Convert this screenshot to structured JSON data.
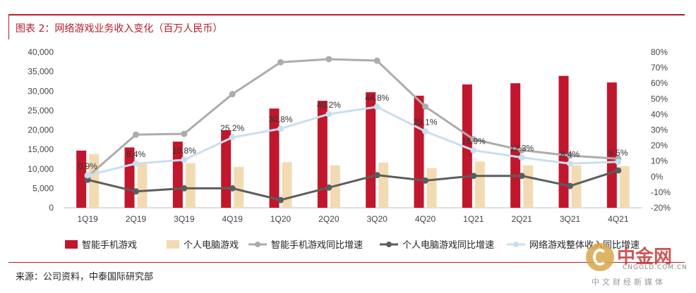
{
  "title": "图表 2：网络游戏业务收入变化（百万人民币）",
  "source": "来源：公司资料，中泰国际研究部",
  "watermark": {
    "main": "中金网",
    "url": "CNGOLD.COM.CN",
    "tagline": "中文财经新媒体"
  },
  "colors": {
    "mobile_bar": "#c0172d",
    "pc_bar": "#f2dbb3",
    "mobile_line": "#acacac",
    "pc_line": "#5d5d5d",
    "total_line": "#c9dff0"
  },
  "chart_data": {
    "type": "bar",
    "categories": [
      "1Q19",
      "2Q19",
      "3Q19",
      "4Q19",
      "1Q20",
      "2Q20",
      "3Q20",
      "4Q20",
      "1Q21",
      "2Q21",
      "3Q21",
      "4Q21"
    ],
    "left_axis": {
      "min": 0,
      "max": 40000,
      "ticks": [
        "0",
        "5,000",
        "10,000",
        "15,000",
        "20,000",
        "25,000",
        "30,000",
        "35,000",
        "40,000"
      ]
    },
    "right_axis": {
      "min": -20,
      "max": 80,
      "ticks": [
        "-20%",
        "-10%",
        "0%",
        "10%",
        "20%",
        "30%",
        "40%",
        "50%",
        "60%",
        "70%",
        "80%"
      ]
    },
    "series": [
      {
        "name": "智能手机游戏",
        "kind": "bar",
        "axis": "left",
        "values": [
          14700,
          15500,
          17000,
          19900,
          25500,
          27500,
          29700,
          28800,
          31700,
          32000,
          33900,
          32200
        ]
      },
      {
        "name": "个人电脑游戏",
        "kind": "bar",
        "axis": "left",
        "values": [
          13800,
          11600,
          11500,
          10500,
          11700,
          10900,
          11600,
          10200,
          11900,
          10900,
          10900,
          10700
        ]
      },
      {
        "name": "智能手机游戏同比增速",
        "kind": "line",
        "axis": "right",
        "values": [
          0,
          27,
          27.5,
          53,
          73.5,
          75.5,
          74.5,
          45,
          24,
          17,
          13.5,
          11.5
        ]
      },
      {
        "name": "个人电脑游戏同比增速",
        "kind": "line",
        "axis": "right",
        "values": [
          -2,
          -9.5,
          -7.5,
          -7.5,
          -15,
          -7,
          1,
          -2.5,
          0.5,
          0.5,
          -6,
          4
        ]
      },
      {
        "name": "网络游戏整体收入同比增速",
        "kind": "line",
        "axis": "right",
        "values": [
          0.9,
          8.4,
          10.8,
          25.2,
          30.8,
          40.2,
          44.8,
          29.1,
          16.9,
          12.3,
          8.4,
          9.5
        ],
        "labels": [
          "0.9%",
          "8.4%",
          "10.8%",
          "25.2%",
          "30.8%",
          "40.2%",
          "44.8%",
          "29.1%",
          "16.9%",
          "12.3%",
          "8.4%",
          "9.5%"
        ]
      }
    ],
    "legend_position": "bottom"
  }
}
